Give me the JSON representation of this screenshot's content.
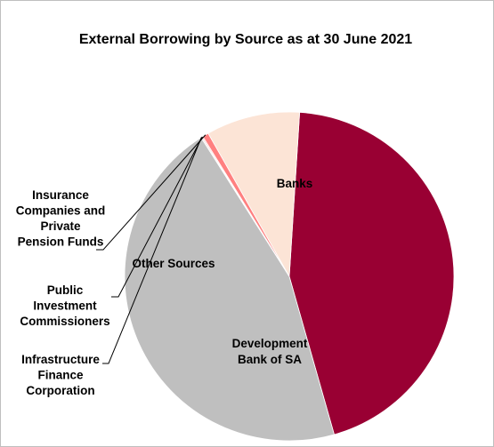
{
  "chart_data": {
    "type": "pie",
    "title": "External Borrowing by Source as at 30 June 2021",
    "slices": [
      {
        "name": "Banks",
        "label_lines": [
          "Banks"
        ],
        "value": 44.6,
        "color": "#990033"
      },
      {
        "name": "Development Bank of SA",
        "label_lines": [
          "Development",
          "Bank of SA"
        ],
        "value": 45.4,
        "color": "#bfbfbf"
      },
      {
        "name": "Infrastructure Finance Corporation",
        "label_lines": [
          "Infrastructure",
          "Finance",
          "Corporation"
        ],
        "value": 0.1,
        "color": "#d9d9d9"
      },
      {
        "name": "Public Investment Commissioners",
        "label_lines": [
          "Public",
          "Investment",
          "Commissioners"
        ],
        "value": 0.1,
        "color": "#ff9999"
      },
      {
        "name": "Insurance Companies and Private Pension Funds",
        "label_lines": [
          "Insurance",
          "Companies and",
          "Private",
          "Pension Funds"
        ],
        "value": 0.6,
        "color": "#ff8080"
      },
      {
        "name": "Other Sources",
        "label_lines": [
          "Other Sources"
        ],
        "value": 9.2,
        "color": "#fce4d6"
      }
    ],
    "legend": "none"
  }
}
